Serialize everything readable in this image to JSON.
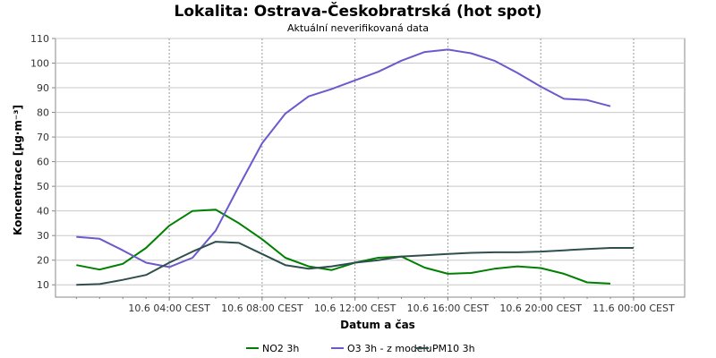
{
  "chart_data": {
    "type": "line",
    "title": "Lokalita: Ostrava-Českobratrská (hot spot)",
    "subtitle": "Aktuální neverifikovaná data",
    "xlabel": "Datum a čas",
    "ylabel": "Koncentrace [µg·m⁻³]",
    "ylim": [
      5,
      110
    ],
    "y_ticks": [
      10,
      20,
      30,
      40,
      50,
      60,
      70,
      80,
      90,
      100,
      110
    ],
    "x_tick_labels": [
      "10.6 04:00 CEST",
      "10.6 08:00 CEST",
      "10.6 12:00 CEST",
      "10.6 16:00 CEST",
      "10.6 20:00 CEST",
      "11.6 00:00 CEST"
    ],
    "x_tick_hours": [
      4,
      8,
      12,
      16,
      20,
      24
    ],
    "x_range_hours": [
      -0.9,
      26.2
    ],
    "grid": true,
    "legend_position": "bottom",
    "x_hours": [
      0,
      1,
      2,
      3,
      4,
      5,
      6,
      7,
      8,
      9,
      10,
      11,
      12,
      13,
      14,
      15,
      16,
      17,
      18,
      19,
      20,
      21,
      22,
      23,
      24
    ],
    "series": [
      {
        "name": "NO2 3h",
        "color": "#008000",
        "values": [
          18,
          16.2,
          18.5,
          25,
          34,
          40,
          40.5,
          35,
          28.5,
          21,
          17.5,
          16,
          19,
          21,
          21.5,
          17,
          14.5,
          14.8,
          16.5,
          17.5,
          16.8,
          14.5,
          11,
          10.5,
          null
        ]
      },
      {
        "name": "O3 3h - z modelu",
        "color": "#6a5acd",
        "values": [
          29.5,
          28.7,
          24,
          19,
          17.2,
          21,
          32,
          50,
          67.5,
          79.5,
          86.5,
          89.5,
          93,
          96.5,
          101,
          104.5,
          105.5,
          104,
          101,
          96,
          90.5,
          85.5,
          85,
          82.5,
          null
        ]
      },
      {
        "name": "PM10 3h",
        "color": "#2f4f4f",
        "values": [
          10,
          10.3,
          12,
          14,
          19,
          23.5,
          27.5,
          27,
          22.5,
          18,
          16.5,
          17.5,
          19,
          20,
          21.5,
          22,
          22.5,
          23,
          23.2,
          23.2,
          23.5,
          24,
          24.5,
          25,
          25
        ]
      }
    ]
  }
}
